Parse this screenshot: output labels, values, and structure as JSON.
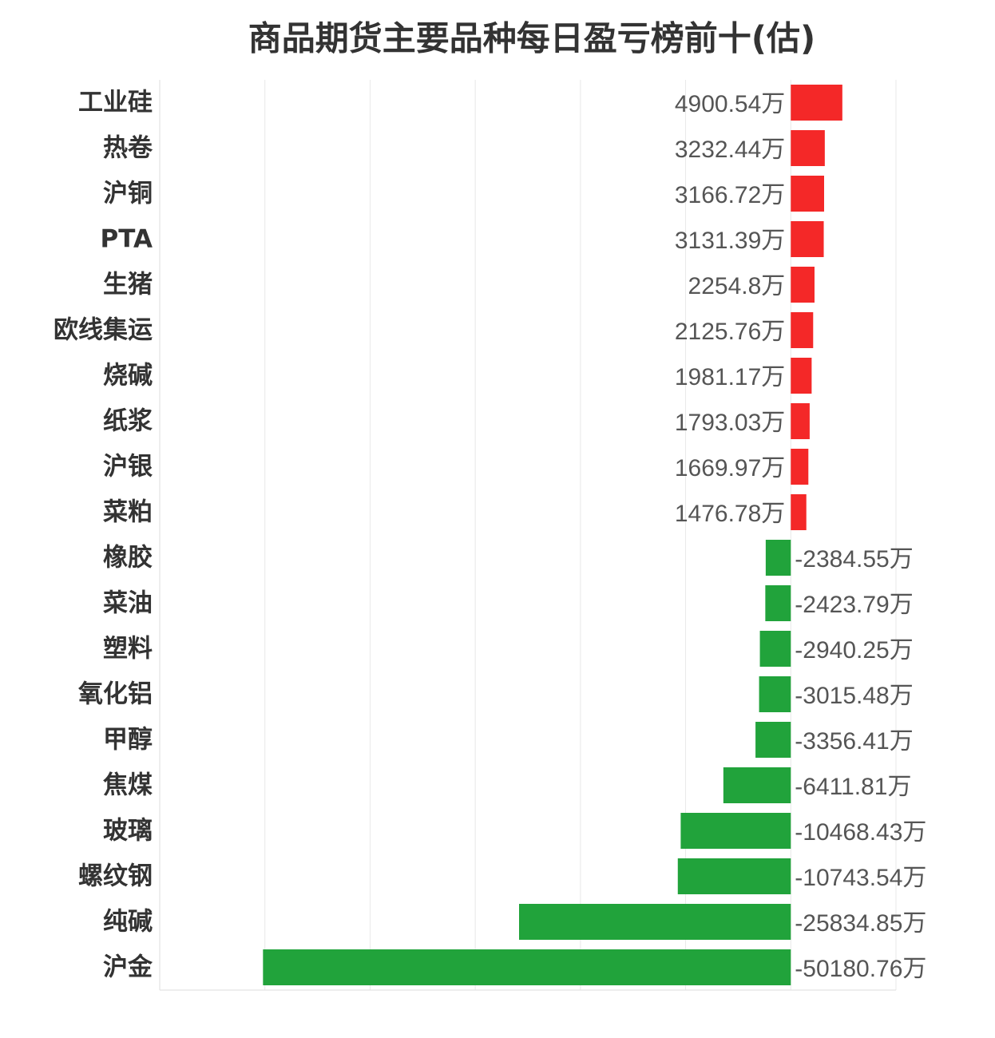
{
  "chart_data": {
    "type": "bar",
    "orientation": "horizontal",
    "title": "商品期货主要品种每日盈亏榜前十(估)",
    "categories": [
      "工业硅",
      "热卷",
      "沪铜",
      "PTA",
      "生猪",
      "欧线集运",
      "烧碱",
      "纸浆",
      "沪银",
      "菜粕",
      "橡胶",
      "菜油",
      "塑料",
      "氧化铝",
      "甲醇",
      "焦煤",
      "玻璃",
      "螺纹钢",
      "纯碱",
      "沪金"
    ],
    "values": [
      4900.54,
      3232.44,
      3166.72,
      3131.39,
      2254.8,
      2125.76,
      1981.17,
      1793.03,
      1669.97,
      1476.78,
      -2384.55,
      -2423.79,
      -2940.25,
      -3015.48,
      -3356.41,
      -6411.81,
      -10468.43,
      -10743.54,
      -25834.85,
      -50180.76
    ],
    "data_labels": [
      "4900.54万",
      "3232.44万",
      "3166.72万",
      "3131.39万",
      "2254.8万",
      "2125.76万",
      "1981.17万",
      "1793.03万",
      "1669.97万",
      "1476.78万",
      "-2384.55万",
      "-2423.79万",
      "-2940.25万",
      "-3015.48万",
      "-3356.41万",
      "-6411.81万",
      "-10468.43万",
      "-10743.54万",
      "-25834.85万",
      "-50180.76万"
    ],
    "xlim": [
      -60000,
      10000
    ],
    "grid": true,
    "gridline_step": 10000,
    "colors": {
      "positive": "#f42828",
      "negative": "#21a33b",
      "grid": "#e8e8e8",
      "axis": "#dddddd"
    }
  }
}
